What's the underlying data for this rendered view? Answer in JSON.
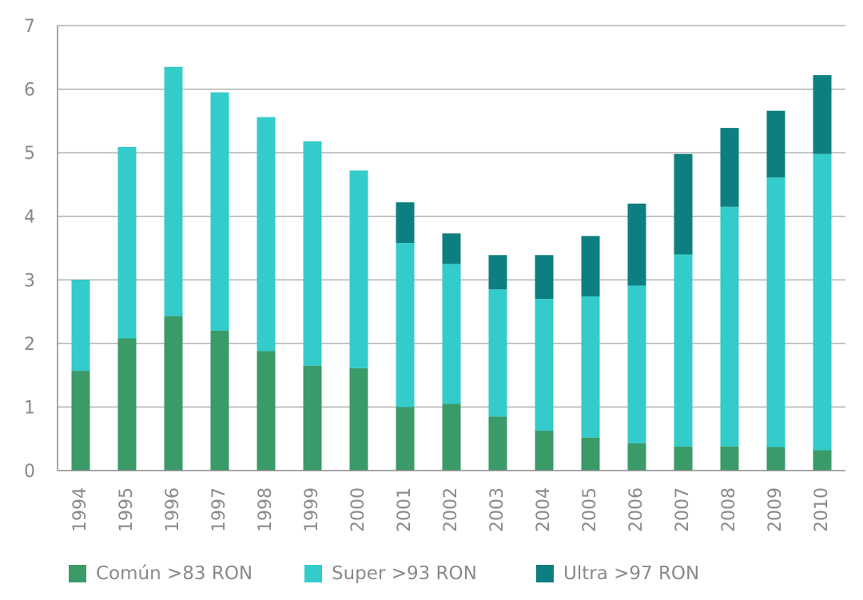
{
  "chart_data": {
    "type": "bar",
    "stacked": true,
    "categories": [
      "1994",
      "1995",
      "1996",
      "1997",
      "1998",
      "1999",
      "2000",
      "2001",
      "2002",
      "2003",
      "2004",
      "2005",
      "2006",
      "2007",
      "2008",
      "2009",
      "2010"
    ],
    "series": [
      {
        "name": "Común >83 RON",
        "color": "#3a9a68",
        "values": [
          1.57,
          2.08,
          2.43,
          2.2,
          1.88,
          1.65,
          1.61,
          1.0,
          1.05,
          0.85,
          0.63,
          0.52,
          0.43,
          0.38,
          0.38,
          0.37,
          0.32
        ]
      },
      {
        "name": "Super >93 RON",
        "color": "#34cbcb",
        "values": [
          1.43,
          3.01,
          3.92,
          3.75,
          3.68,
          3.53,
          3.11,
          2.58,
          2.2,
          2.0,
          2.07,
          2.22,
          2.48,
          3.02,
          3.77,
          4.24,
          4.66
        ]
      },
      {
        "name": "Ultra >97 RON",
        "color": "#0e7f80",
        "values": [
          0,
          0,
          0,
          0,
          0,
          0,
          0,
          0.64,
          0.48,
          0.54,
          0.69,
          0.95,
          1.29,
          1.58,
          1.24,
          1.05,
          1.24
        ]
      }
    ],
    "ylim": [
      0,
      7
    ],
    "yticks": [
      "0",
      "1",
      "2",
      "3",
      "4",
      "5",
      "6",
      "7"
    ],
    "grid": true,
    "legend_position": "bottom",
    "title": "",
    "xlabel": "",
    "ylabel": ""
  }
}
